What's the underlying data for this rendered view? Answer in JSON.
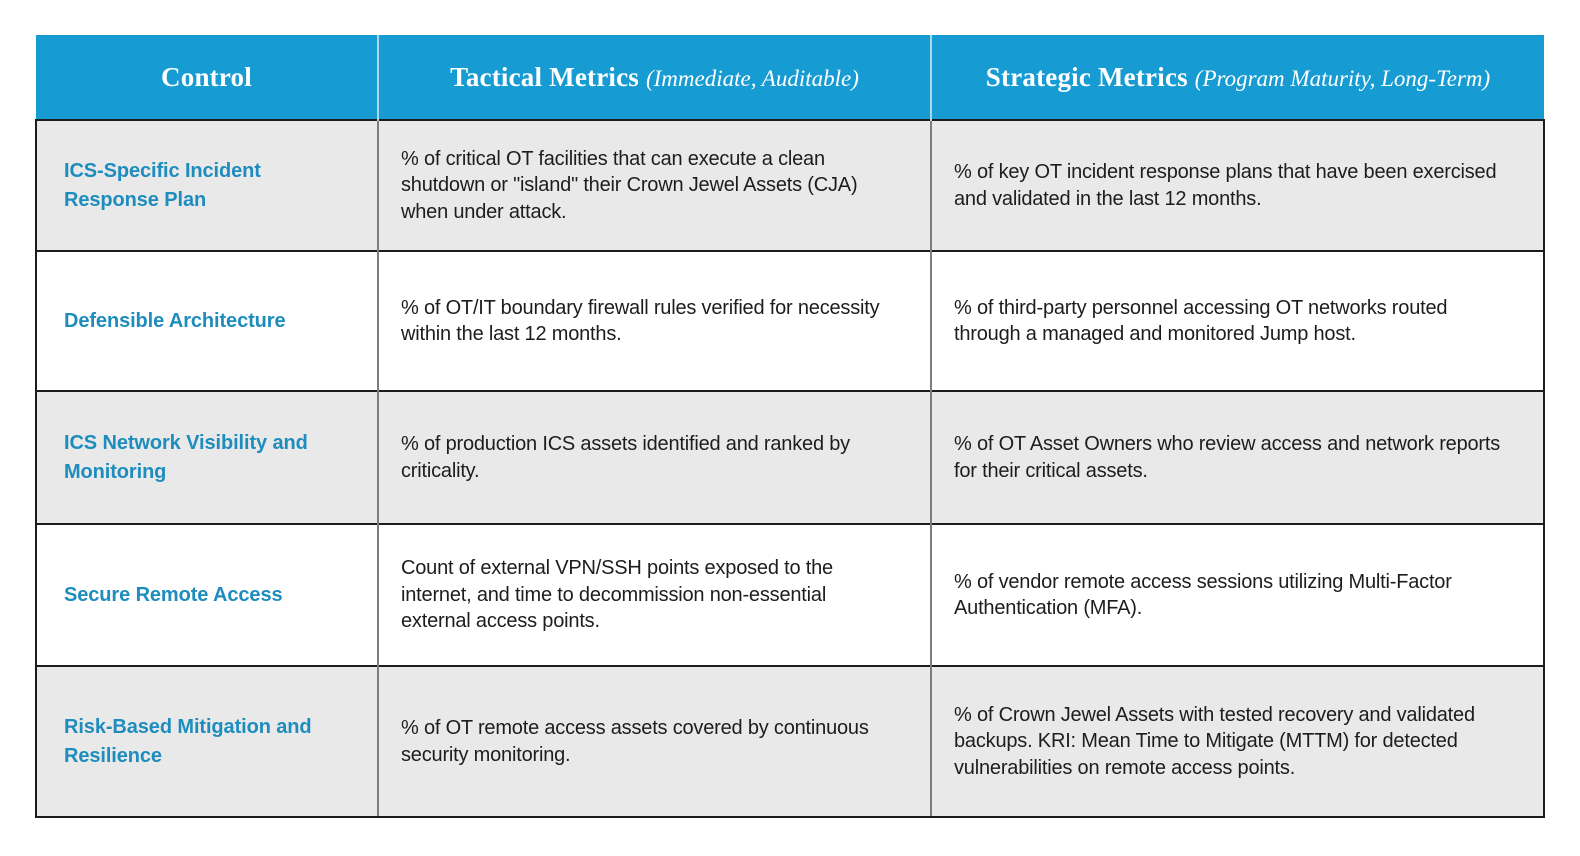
{
  "colors": {
    "header_bg": "#169bd2",
    "header_text": "#ffffff",
    "header_divider": "#a6d7ed",
    "control_text": "#1e8dbe",
    "row_alt_bg": "#e9e9e9",
    "row_bg": "#ffffff",
    "border_dark": "#1c1c1c",
    "border_gray": "#7d7d7d"
  },
  "table": {
    "columns": [
      {
        "label": "Control",
        "sub": ""
      },
      {
        "label": "Tactical Metrics",
        "sub": "(Immediate, Auditable)"
      },
      {
        "label": "Strategic Metrics",
        "sub": "(Program Maturity, Long-Term)"
      }
    ],
    "rows": [
      {
        "control": "ICS-Specific Incident Response Plan",
        "tactical": "% of critical OT facilities that can execute a clean shutdown or \"island\" their Crown Jewel Assets (CJA) when under attack.",
        "strategic": "% of key OT incident response plans that have been ex­ercised and validated in the last 12 months."
      },
      {
        "control": "Defensible Architecture",
        "tactical": "% of OT/IT boundary firewall rules verified for ne­cessity within the last 12 months.",
        "strategic": "% of third-party personnel accessing OT networks rout­ed through a managed and monitored Jump host."
      },
      {
        "control": "ICS Network Visibility and Monitoring",
        "tactical": "% of production ICS assets identified and ranked by criticality.",
        "strategic": "% of OT Asset Owners who review access and network reports for their critical assets."
      },
      {
        "control": "Secure Remote Access",
        "tactical": "Count of external VPN/SSH points exposed to the internet, and time to decommission non-essential external access points.",
        "strategic": "% of vendor remote access sessions utilizing Multi-Fac­tor Authentication (MFA)."
      },
      {
        "control": "Risk-Based Mitigation and Resilience",
        "tactical": "% of OT remote access assets covered by continu­ous security monitoring.",
        "strategic": "% of Crown Jewel Assets with tested recovery and val­idated backups. KRI: Mean Time to Mitigate (MTTM) for detected vulnerabilities on remote access points."
      }
    ]
  }
}
